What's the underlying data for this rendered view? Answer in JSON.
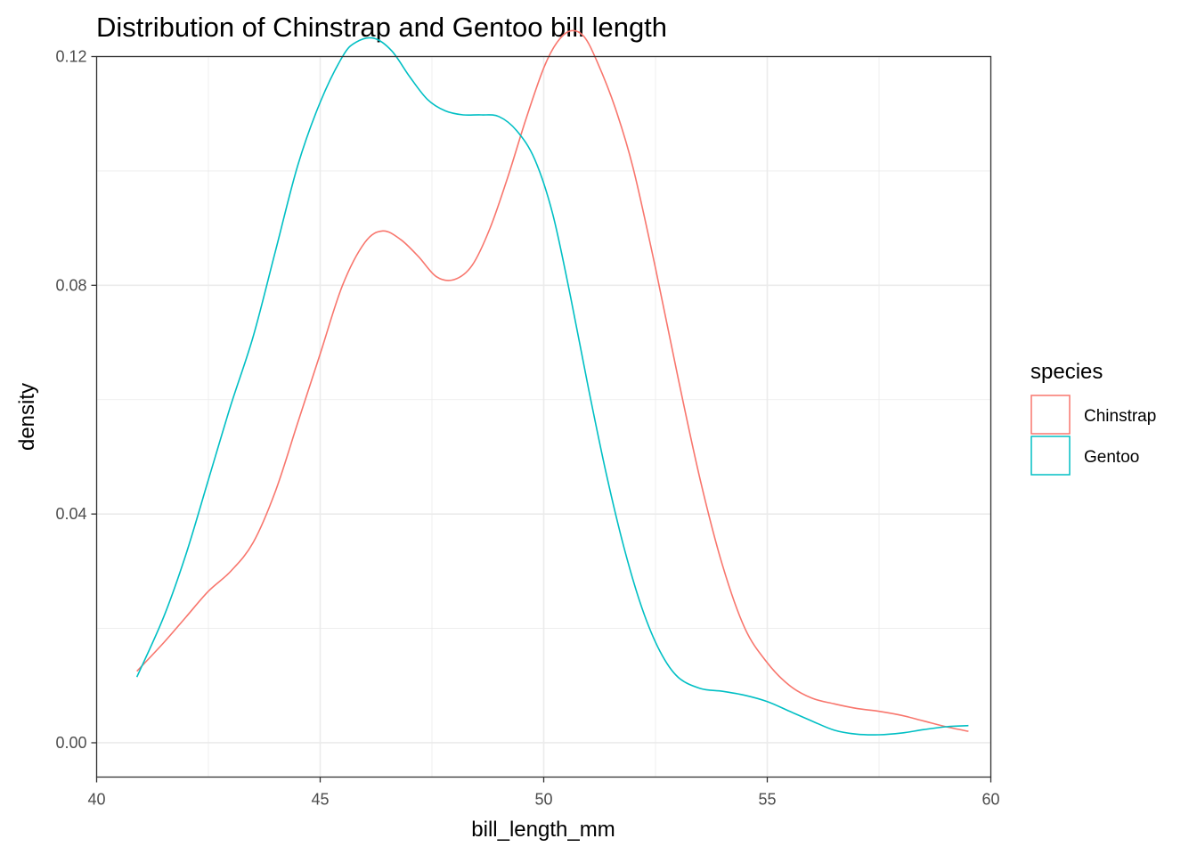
{
  "chart_data": {
    "type": "line",
    "title": "Distribution of Chinstrap and Gentoo bill length",
    "xlabel": "bill_length_mm",
    "ylabel": "density",
    "xlim": [
      40,
      60
    ],
    "ylim": [
      -0.006,
      0.12
    ],
    "x_ticks": [
      40,
      45,
      50,
      55,
      60
    ],
    "x_tick_labels": [
      "40",
      "45",
      "50",
      "55",
      "60"
    ],
    "y_ticks": [
      0,
      0.04,
      0.08,
      0.12
    ],
    "y_tick_labels": [
      "0.00",
      "0.04",
      "0.08",
      "0.12"
    ],
    "grid": true,
    "legend": {
      "title": "species",
      "position": "right"
    },
    "series": [
      {
        "name": "Chinstrap",
        "color": "#F8766D",
        "x": [
          40.9,
          41.5,
          42.0,
          42.5,
          43.0,
          43.5,
          44.0,
          44.5,
          45.0,
          45.5,
          46.0,
          46.4,
          46.8,
          47.2,
          47.6,
          48.0,
          48.4,
          48.8,
          49.2,
          49.6,
          50.0,
          50.3,
          50.6,
          50.9,
          51.2,
          51.6,
          52.0,
          52.5,
          53.0,
          53.5,
          54.0,
          54.5,
          55.0,
          55.5,
          56.0,
          56.5,
          57.0,
          57.5,
          58.0,
          58.5,
          59.0,
          59.5
        ],
        "y": [
          0.0125,
          0.0175,
          0.022,
          0.0265,
          0.03,
          0.035,
          0.044,
          0.056,
          0.068,
          0.08,
          0.0875,
          0.0895,
          0.088,
          0.085,
          0.0815,
          0.081,
          0.0835,
          0.09,
          0.099,
          0.109,
          0.118,
          0.1225,
          0.1245,
          0.1235,
          0.119,
          0.111,
          0.1005,
          0.083,
          0.064,
          0.046,
          0.031,
          0.02,
          0.014,
          0.01,
          0.0078,
          0.0068,
          0.006,
          0.0055,
          0.0048,
          0.0038,
          0.0028,
          0.002
        ]
      },
      {
        "name": "Gentoo",
        "color": "#00BFC4",
        "x": [
          40.9,
          41.5,
          42.0,
          42.5,
          43.0,
          43.5,
          44.0,
          44.5,
          45.0,
          45.5,
          45.8,
          46.2,
          46.6,
          47.0,
          47.4,
          47.8,
          48.2,
          48.6,
          49.0,
          49.4,
          49.8,
          50.2,
          50.6,
          51.0,
          51.4,
          51.8,
          52.2,
          52.6,
          53.0,
          53.5,
          54.0,
          54.5,
          55.0,
          55.5,
          56.0,
          56.5,
          57.0,
          57.5,
          58.0,
          58.5,
          59.0,
          59.5
        ],
        "y": [
          0.0115,
          0.022,
          0.033,
          0.046,
          0.059,
          0.071,
          0.086,
          0.101,
          0.112,
          0.12,
          0.1225,
          0.1232,
          0.121,
          0.1165,
          0.1125,
          0.1105,
          0.1098,
          0.1098,
          0.1095,
          0.107,
          0.102,
          0.0925,
          0.078,
          0.062,
          0.047,
          0.034,
          0.0235,
          0.016,
          0.0115,
          0.0095,
          0.009,
          0.0083,
          0.0072,
          0.0055,
          0.0038,
          0.0022,
          0.0015,
          0.0014,
          0.0017,
          0.0023,
          0.0028,
          0.003
        ]
      }
    ]
  }
}
